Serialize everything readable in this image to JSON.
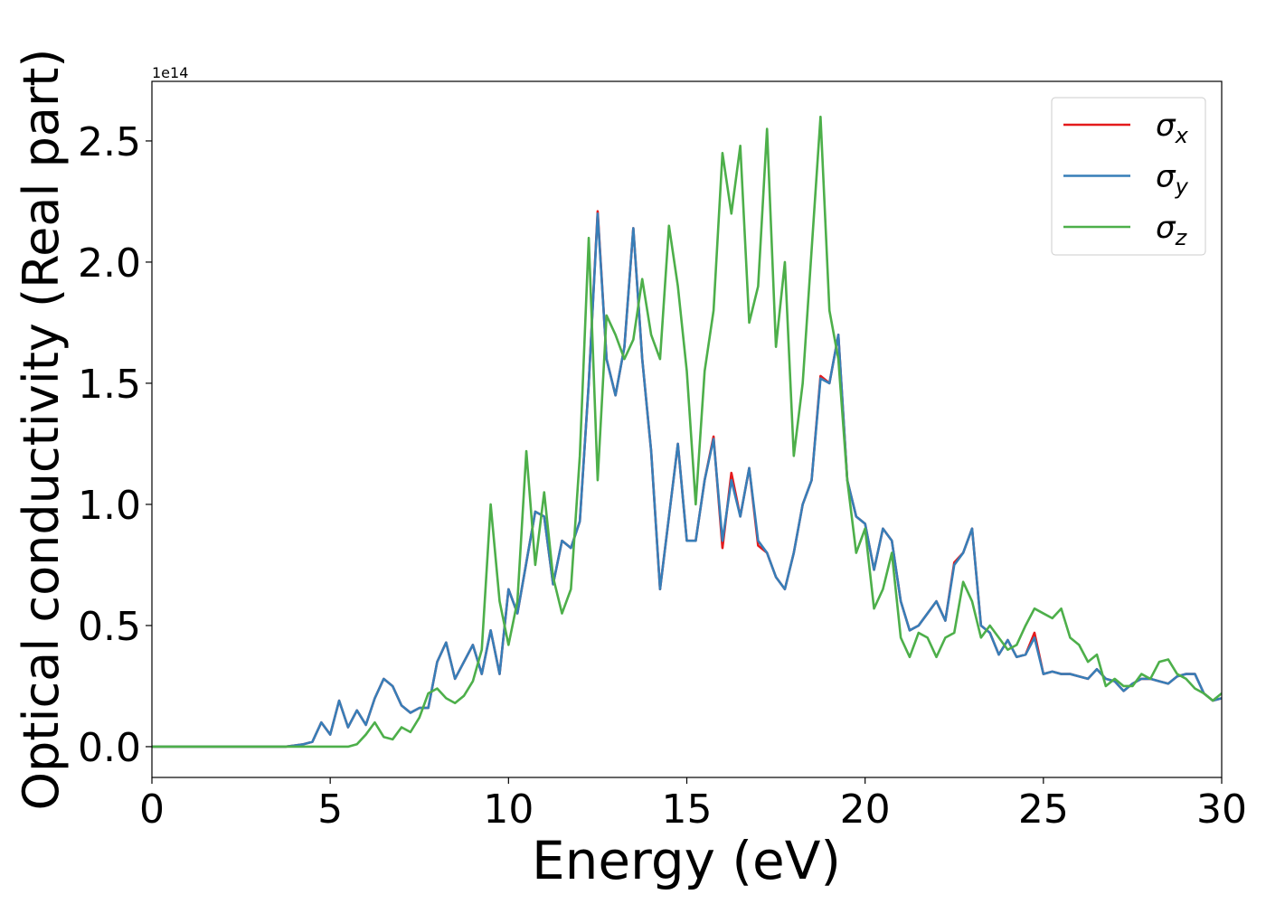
{
  "chart_data": {
    "type": "line",
    "xlabel": "Energy (eV)",
    "ylabel": "Optical conductivity (Real part)",
    "y_offset_label": "1e14",
    "xlim": [
      0,
      30
    ],
    "ylim": [
      -0.127,
      2.746
    ],
    "xticks": [
      0,
      5,
      10,
      15,
      20,
      25,
      30
    ],
    "yticks": [
      {
        "value": 0,
        "label": "0.0"
      },
      0.5,
      {
        "value": 1,
        "label": "1.0"
      },
      1.5,
      {
        "value": 2,
        "label": "2.0"
      },
      2.5
    ],
    "legend": "upper right",
    "x": [
      0,
      0.25,
      0.5,
      0.75,
      1,
      1.25,
      1.5,
      1.75,
      2,
      2.25,
      2.5,
      2.75,
      3,
      3.25,
      3.5,
      3.75,
      4,
      4.25,
      4.5,
      4.75,
      5,
      5.25,
      5.5,
      5.75,
      6,
      6.25,
      6.5,
      6.75,
      7,
      7.25,
      7.5,
      7.75,
      8,
      8.25,
      8.5,
      8.75,
      9,
      9.25,
      9.5,
      9.75,
      10,
      10.25,
      10.5,
      10.75,
      11,
      11.25,
      11.5,
      11.75,
      12,
      12.25,
      12.5,
      12.75,
      13,
      13.25,
      13.5,
      13.75,
      14,
      14.25,
      14.5,
      14.75,
      15,
      15.25,
      15.5,
      15.75,
      16,
      16.25,
      16.5,
      16.75,
      17,
      17.25,
      17.5,
      17.75,
      18,
      18.25,
      18.5,
      18.75,
      19,
      19.25,
      19.5,
      19.75,
      20,
      20.25,
      20.5,
      20.75,
      21,
      21.25,
      21.5,
      21.75,
      22,
      22.25,
      22.5,
      22.75,
      23,
      23.25,
      23.5,
      23.75,
      24,
      24.25,
      24.5,
      24.75,
      25,
      25.25,
      25.5,
      25.75,
      26,
      26.25,
      26.5,
      26.75,
      27,
      27.25,
      27.5,
      27.75,
      28,
      28.25,
      28.5,
      28.75,
      29,
      29.25,
      29.5,
      29.75,
      30
    ],
    "series": [
      {
        "name": "σx",
        "color": "#e41a1c",
        "values": [
          0,
          0,
          0,
          0,
          0,
          0,
          0,
          0,
          0,
          0,
          0,
          0,
          0,
          0,
          0,
          0,
          0.005,
          0.01,
          0.02,
          0.1,
          0.05,
          0.19,
          0.08,
          0.15,
          0.09,
          0.2,
          0.28,
          0.25,
          0.17,
          0.14,
          0.16,
          0.16,
          0.35,
          0.43,
          0.28,
          0.35,
          0.42,
          0.3,
          0.48,
          0.3,
          0.65,
          0.55,
          0.76,
          0.97,
          0.95,
          0.67,
          0.85,
          0.82,
          0.93,
          1.5,
          2.21,
          1.6,
          1.45,
          1.65,
          2.14,
          1.6,
          1.22,
          0.65,
          0.95,
          1.25,
          0.85,
          0.85,
          1.1,
          1.28,
          0.82,
          1.13,
          0.95,
          1.15,
          0.83,
          0.8,
          0.7,
          0.65,
          0.8,
          1.0,
          1.1,
          1.53,
          1.5,
          1.7,
          1.1,
          0.95,
          0.92,
          0.73,
          0.9,
          0.85,
          0.6,
          0.48,
          0.5,
          0.55,
          0.6,
          0.52,
          0.76,
          0.8,
          0.9,
          0.5,
          0.47,
          0.38,
          0.44,
          0.37,
          0.38,
          0.47,
          0.3,
          0.31,
          0.3,
          0.3,
          0.29,
          0.28,
          0.32,
          0.28,
          0.27,
          0.23,
          0.26,
          0.28,
          0.28,
          0.27,
          0.26,
          0.29,
          0.3,
          0.3,
          0.22,
          0.19,
          0.2
        ]
      },
      {
        "name": "σy",
        "color": "#377eb8",
        "values": [
          0,
          0,
          0,
          0,
          0,
          0,
          0,
          0,
          0,
          0,
          0,
          0,
          0,
          0,
          0,
          0,
          0.005,
          0.01,
          0.02,
          0.1,
          0.05,
          0.19,
          0.08,
          0.15,
          0.09,
          0.2,
          0.28,
          0.25,
          0.17,
          0.14,
          0.16,
          0.16,
          0.35,
          0.43,
          0.28,
          0.35,
          0.42,
          0.3,
          0.48,
          0.3,
          0.65,
          0.55,
          0.76,
          0.97,
          0.95,
          0.67,
          0.85,
          0.82,
          0.93,
          1.5,
          2.2,
          1.6,
          1.45,
          1.65,
          2.14,
          1.6,
          1.22,
          0.65,
          0.95,
          1.25,
          0.85,
          0.85,
          1.1,
          1.27,
          0.85,
          1.1,
          0.95,
          1.15,
          0.85,
          0.8,
          0.7,
          0.65,
          0.8,
          1.0,
          1.1,
          1.52,
          1.5,
          1.7,
          1.1,
          0.95,
          0.92,
          0.73,
          0.9,
          0.85,
          0.6,
          0.48,
          0.5,
          0.55,
          0.6,
          0.52,
          0.75,
          0.8,
          0.9,
          0.5,
          0.47,
          0.38,
          0.44,
          0.37,
          0.38,
          0.45,
          0.3,
          0.31,
          0.3,
          0.3,
          0.29,
          0.28,
          0.32,
          0.28,
          0.27,
          0.23,
          0.26,
          0.28,
          0.28,
          0.27,
          0.26,
          0.29,
          0.3,
          0.3,
          0.22,
          0.19,
          0.2
        ]
      },
      {
        "name": "σz",
        "color": "#4daf4a",
        "values": [
          0,
          0,
          0,
          0,
          0,
          0,
          0,
          0,
          0,
          0,
          0,
          0,
          0,
          0,
          0,
          0,
          0,
          0,
          0,
          0,
          0,
          0,
          0,
          0.01,
          0.05,
          0.1,
          0.04,
          0.03,
          0.08,
          0.06,
          0.12,
          0.22,
          0.24,
          0.2,
          0.18,
          0.21,
          0.27,
          0.4,
          1.0,
          0.6,
          0.42,
          0.6,
          1.22,
          0.75,
          1.05,
          0.7,
          0.55,
          0.65,
          1.2,
          2.1,
          1.1,
          1.78,
          1.7,
          1.6,
          1.68,
          1.93,
          1.7,
          1.6,
          2.15,
          1.9,
          1.55,
          1.0,
          1.55,
          1.8,
          2.45,
          2.2,
          2.48,
          1.75,
          1.9,
          2.55,
          1.65,
          2.0,
          1.2,
          1.5,
          2.05,
          2.6,
          1.8,
          1.6,
          1.1,
          0.8,
          0.9,
          0.57,
          0.65,
          0.8,
          0.45,
          0.37,
          0.47,
          0.45,
          0.37,
          0.45,
          0.47,
          0.68,
          0.6,
          0.45,
          0.5,
          0.45,
          0.4,
          0.42,
          0.5,
          0.57,
          0.55,
          0.53,
          0.57,
          0.45,
          0.42,
          0.35,
          0.38,
          0.25,
          0.28,
          0.25,
          0.25,
          0.3,
          0.28,
          0.35,
          0.36,
          0.3,
          0.28,
          0.24,
          0.22,
          0.19,
          0.22
        ]
      }
    ]
  }
}
